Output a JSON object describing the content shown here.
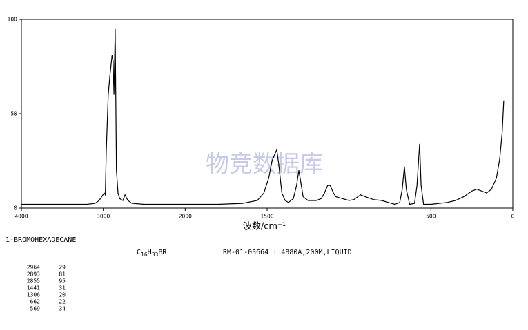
{
  "chart_data": {
    "type": "line",
    "x": [
      4000,
      3500,
      3200,
      3100,
      3050,
      3020,
      2990,
      2975,
      2964,
      2940,
      2920,
      2893,
      2880,
      2870,
      2855,
      2840,
      2820,
      2800,
      2760,
      2735,
      2700,
      2650,
      2500,
      2200,
      2000,
      1800,
      1650,
      1560,
      1520,
      1490,
      1470,
      1441,
      1430,
      1410,
      1390,
      1370,
      1340,
      1320,
      1306,
      1295,
      1280,
      1250,
      1200,
      1170,
      1150,
      1130,
      1115,
      1095,
      1080,
      1040,
      1000,
      970,
      930,
      900,
      850,
      800,
      760,
      720,
      690,
      675,
      662,
      650,
      630,
      600,
      585,
      569,
      560,
      545,
      500,
      450,
      400,
      350,
      300,
      250,
      220,
      190,
      160,
      130,
      100,
      80,
      65,
      55
    ],
    "values": [
      2,
      2,
      2,
      2.5,
      4,
      6,
      8,
      7,
      29,
      60,
      70,
      81,
      78,
      60,
      95,
      20,
      8,
      5,
      4,
      7,
      4,
      2.5,
      2,
      2,
      2,
      2,
      2.5,
      4,
      8,
      16,
      25,
      31,
      24,
      8,
      4,
      3,
      5,
      12,
      20,
      14,
      6,
      4,
      4,
      5,
      8,
      12,
      12,
      8,
      6,
      5,
      4,
      4.5,
      7,
      6,
      4.5,
      4,
      3,
      2,
      3,
      10,
      22,
      10,
      2,
      2.5,
      12,
      34,
      12,
      2,
      2,
      2.5,
      3,
      4,
      6,
      9,
      10,
      9,
      8,
      10,
      16,
      26,
      40,
      57
    ],
    "color": "#000000",
    "xlim": [
      4000,
      0
    ],
    "x_break": 2000,
    "x_break_ratio": 0.5,
    "xticks": [
      4000,
      3000,
      2000,
      1500,
      500,
      0
    ],
    "ylim": [
      0,
      100
    ],
    "yticks": [
      0,
      50,
      100
    ],
    "x_label": "波数/cm⁻¹",
    "watermark": "物竞数据库"
  },
  "compound": "1-BROMOHEXADECANE",
  "formula": [
    "C",
    "16",
    "H",
    "33",
    "BR"
  ],
  "sample_info": "RM-01-03664 : 4880A,200M,LIQUID",
  "peak_table": {
    "rows": [
      [
        2964,
        29
      ],
      [
        2893,
        81
      ],
      [
        2855,
        95
      ],
      [
        1441,
        31
      ],
      [
        1306,
        20
      ],
      [
        662,
        22
      ],
      [
        569,
        34
      ]
    ]
  }
}
